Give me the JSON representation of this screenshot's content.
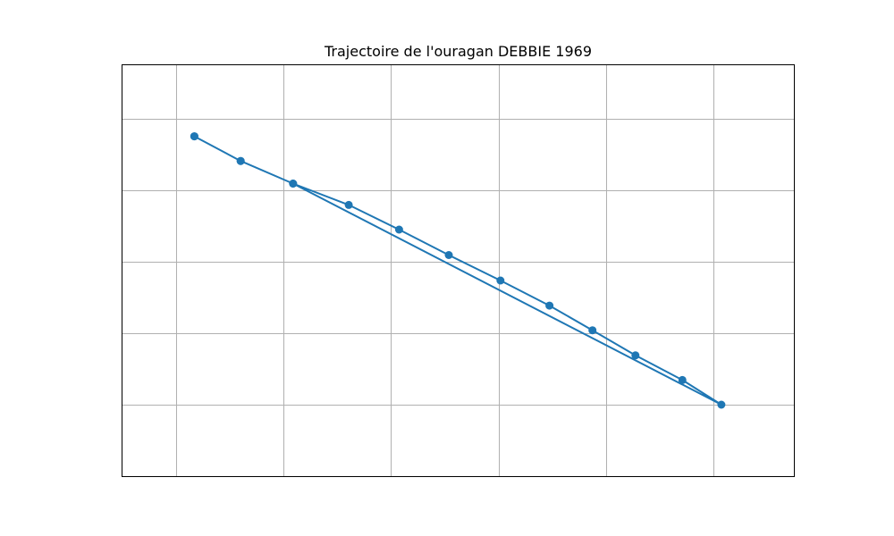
{
  "chart_data": {
    "type": "line",
    "title": "Trajectoire de l'ouragan DEBBIE 1969",
    "xlabel": "",
    "ylabel": "",
    "xlim": [
      0,
      1
    ],
    "ylim": [
      0,
      1
    ],
    "x_gridlines": [
      0.08,
      0.24,
      0.4,
      0.56,
      0.72,
      0.88
    ],
    "y_gridlines": [
      0.174,
      0.348,
      0.522,
      0.696,
      0.87
    ],
    "grid": true,
    "show_tick_labels": false,
    "series": [
      {
        "color": "#1f77b4",
        "points": [
          [
            0.107,
            0.827
          ],
          [
            0.176,
            0.767
          ],
          [
            0.254,
            0.712
          ],
          [
            0.337,
            0.66
          ],
          [
            0.412,
            0.6
          ],
          [
            0.486,
            0.538
          ],
          [
            0.563,
            0.476
          ],
          [
            0.636,
            0.415
          ],
          [
            0.7,
            0.355
          ],
          [
            0.764,
            0.294
          ],
          [
            0.834,
            0.234
          ],
          [
            0.892,
            0.174
          ],
          [
            0.254,
            0.712
          ],
          [
            0.176,
            0.767
          ],
          [
            0.107,
            0.827
          ]
        ]
      }
    ]
  }
}
